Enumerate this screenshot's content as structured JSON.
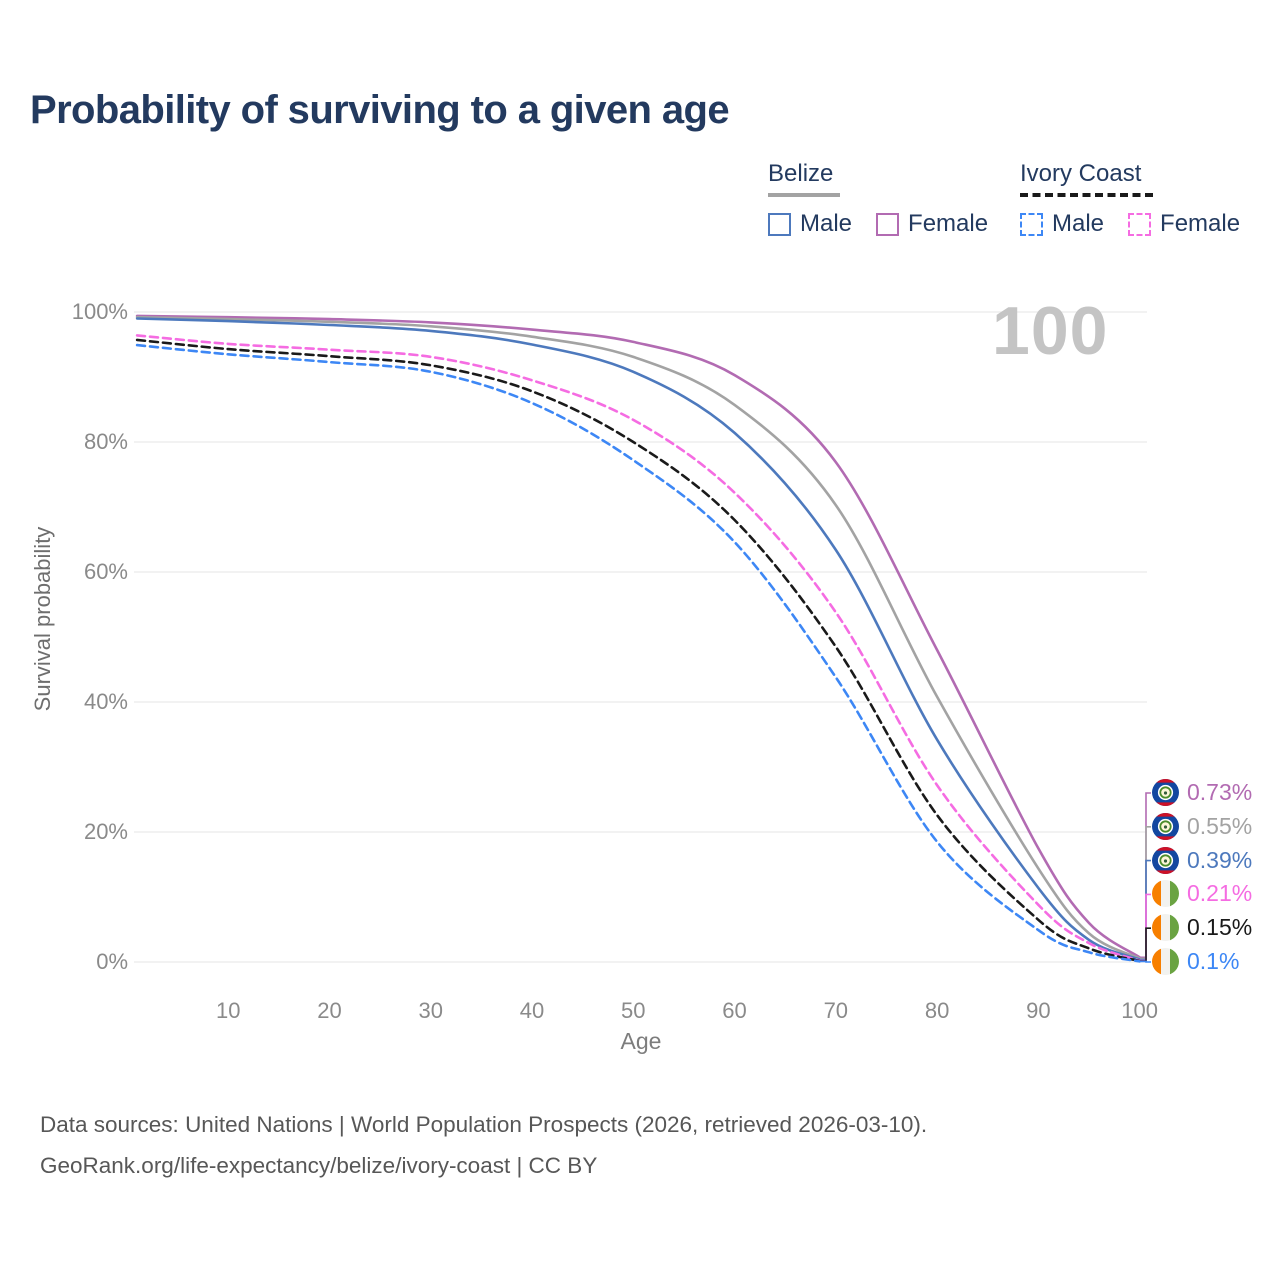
{
  "title": "Probability of surviving to a given age",
  "watermark_age": "100",
  "legend": {
    "groups": [
      {
        "label": "Belize",
        "line_style": "solid",
        "line_color": "#a3a3a3",
        "items": [
          {
            "label": "Male",
            "color": "#4d79bd",
            "dashed": false
          },
          {
            "label": "Female",
            "color": "#b26bb2",
            "dashed": false
          }
        ]
      },
      {
        "label": "Ivory Coast",
        "line_style": "dashed",
        "line_color": "#1a1a1a",
        "items": [
          {
            "label": "Male",
            "color": "#3d87f5",
            "dashed": true
          },
          {
            "label": "Female",
            "color": "#f56ce2",
            "dashed": true
          }
        ]
      }
    ]
  },
  "chart_data": {
    "type": "line",
    "title": "Probability of surviving to a given age",
    "xlabel": "Age",
    "ylabel": "Survival probability",
    "xlim": [
      0,
      100
    ],
    "ylim": [
      0,
      100
    ],
    "grid": "horizontal",
    "legend_position": "top-right",
    "x_ticks": [
      10,
      20,
      30,
      40,
      50,
      60,
      70,
      80,
      90,
      100
    ],
    "y_ticks": [
      0,
      20,
      40,
      60,
      80,
      100
    ],
    "y_tick_suffix": "%",
    "x": [
      1,
      10,
      20,
      30,
      40,
      50,
      60,
      70,
      80,
      90,
      95,
      100
    ],
    "series": [
      {
        "name": "Belize Female",
        "country": "Belize",
        "sex": "Female",
        "color": "#b26bb2",
        "dashed": false,
        "flag": "belize",
        "end_label": "0.73%",
        "values": [
          99.4,
          99.2,
          98.9,
          98.4,
          97.3,
          95.4,
          90.3,
          76.9,
          48.0,
          17.5,
          6.0,
          0.73
        ]
      },
      {
        "name": "Belize Both sexes",
        "country": "Belize",
        "sex": "Both sexes",
        "color": "#a3a3a3",
        "dashed": false,
        "flag": "belize",
        "end_label": "0.55%",
        "values": [
          99.2,
          98.9,
          98.5,
          97.8,
          96.2,
          93.1,
          85.7,
          70.3,
          40.8,
          14.4,
          4.4,
          0.55
        ]
      },
      {
        "name": "Belize Male",
        "country": "Belize",
        "sex": "Male",
        "color": "#4d79bd",
        "dashed": false,
        "flag": "belize",
        "end_label": "0.39%",
        "values": [
          99.0,
          98.6,
          98.0,
          97.1,
          95.0,
          90.8,
          81.4,
          63.4,
          34.2,
          11.4,
          3.4,
          0.39
        ]
      },
      {
        "name": "Ivory Coast Female",
        "country": "Ivory Coast",
        "sex": "Female",
        "color": "#f56ce2",
        "dashed": true,
        "flag": "ivory-coast",
        "end_label": "0.21%",
        "values": [
          96.4,
          95.1,
          94.2,
          93.1,
          89.5,
          83.4,
          72.2,
          53.8,
          27.2,
          8.8,
          2.9,
          0.21
        ]
      },
      {
        "name": "Ivory Coast Both sexes",
        "country": "Ivory Coast",
        "sex": "Both sexes",
        "color": "#1a1a1a",
        "dashed": true,
        "flag": "ivory-coast",
        "end_label": "0.15%",
        "values": [
          95.7,
          94.3,
          93.2,
          91.8,
          87.8,
          80.0,
          68.0,
          48.5,
          22.6,
          6.5,
          2.1,
          0.15
        ]
      },
      {
        "name": "Ivory Coast Male",
        "country": "Ivory Coast",
        "sex": "Male",
        "color": "#3d87f5",
        "dashed": true,
        "flag": "ivory-coast",
        "end_label": "0.1%",
        "values": [
          94.9,
          93.5,
          92.3,
          90.8,
          86.0,
          77.2,
          64.6,
          43.8,
          18.5,
          4.9,
          1.5,
          0.1
        ]
      }
    ]
  },
  "footer": {
    "line1": "Data sources: United Nations | World Population Prospects (2026, retrieved 2026-03-10).",
    "line2": "GeoRank.org/life-expectancy/belize/ivory-coast | CC BY"
  }
}
